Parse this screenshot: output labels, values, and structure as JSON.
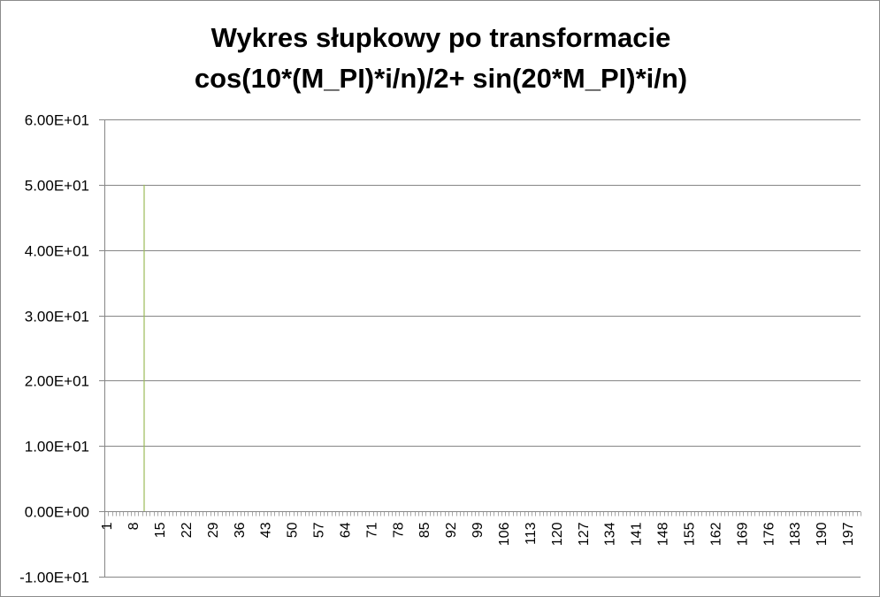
{
  "chart_data": {
    "type": "bar",
    "title_lines": [
      "Wykres słupkowy po transformacie",
      "cos(10*(M_PI)*i/n)/2+ sin(20*M_PI)*i/n)"
    ],
    "xlabel": "",
    "ylabel": "",
    "ylim": [
      -10,
      60
    ],
    "y_ticks": [
      60,
      50,
      40,
      30,
      20,
      10,
      0,
      -10
    ],
    "y_tick_labels": [
      "6.00E+01",
      "5.00E+01",
      "4.00E+01",
      "3.00E+01",
      "2.00E+01",
      "1.00E+01",
      "0.00E+00",
      "-1.00E+01"
    ],
    "x_range": [
      1,
      200
    ],
    "x_tick_labels": [
      "1",
      "8",
      "15",
      "22",
      "29",
      "36",
      "43",
      "50",
      "57",
      "64",
      "71",
      "78",
      "85",
      "92",
      "99",
      "106",
      "113",
      "120",
      "127",
      "134",
      "141",
      "148",
      "155",
      "162",
      "169",
      "176",
      "183",
      "190",
      "197"
    ],
    "bars": [
      {
        "x": 11,
        "value": 50
      }
    ],
    "grid": true,
    "legend": "none",
    "colors": {
      "bar": "#9bbb59",
      "grid": "#868686",
      "axis": "#868686"
    }
  }
}
